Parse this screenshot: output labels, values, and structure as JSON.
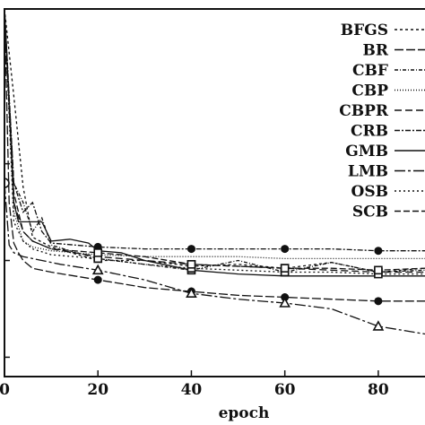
{
  "chart_data": {
    "type": "line",
    "xlabel": "epoch",
    "ylabel": "",
    "xlim": [
      0,
      90
    ],
    "ylim": [
      0.3,
      2.2
    ],
    "xticks": [
      0,
      20,
      40,
      60,
      80
    ],
    "xtick_labels": [
      "0",
      "20",
      "40",
      "60",
      "80"
    ],
    "legend_position": "top-right",
    "grid": false,
    "series": [
      {
        "name": "BFGS",
        "dash": "3,3",
        "marker": "none",
        "x": [
          0,
          2,
          4,
          6,
          10,
          20,
          30,
          40,
          50,
          60,
          70,
          80,
          90
        ],
        "y": [
          2.2,
          1.75,
          1.28,
          1.02,
          0.97,
          0.9,
          0.9,
          0.87,
          0.88,
          0.86,
          0.89,
          0.84,
          0.86
        ]
      },
      {
        "name": "BR",
        "dash": "10,3",
        "marker": "circle",
        "x": [
          0,
          1,
          2,
          3,
          4,
          6,
          10,
          20,
          30,
          40,
          50,
          60,
          70,
          80,
          90
        ],
        "y": [
          2.2,
          1.2,
          0.99,
          0.94,
          0.9,
          0.86,
          0.84,
          0.8,
          0.76,
          0.74,
          0.72,
          0.71,
          0.7,
          0.69,
          0.69
        ]
      },
      {
        "name": "CBF",
        "dash": "4,2,1,2",
        "marker": "square",
        "x": [
          0,
          2,
          4,
          6,
          8,
          10,
          14,
          20,
          30,
          40,
          50,
          60,
          70,
          80,
          90
        ],
        "y": [
          2.2,
          1.3,
          1.2,
          1.05,
          1.12,
          0.98,
          0.95,
          0.91,
          0.88,
          0.85,
          0.9,
          0.84,
          0.89,
          0.84,
          0.85
        ]
      },
      {
        "name": "CBP",
        "dash": "1,2",
        "marker": "none",
        "x": [
          0,
          2,
          4,
          6,
          10,
          20,
          30,
          40,
          50,
          60,
          70,
          80,
          90
        ],
        "y": [
          2.2,
          1.15,
          1.0,
          0.97,
          0.95,
          0.93,
          0.92,
          0.92,
          0.92,
          0.91,
          0.91,
          0.91,
          0.91
        ]
      },
      {
        "name": "CBPR",
        "dash": "8,4",
        "marker": "square",
        "x": [
          0,
          2,
          4,
          6,
          10,
          20,
          30,
          40,
          50,
          60,
          70,
          80,
          90
        ],
        "y": [
          2.2,
          1.2,
          1.05,
          1.0,
          0.96,
          0.92,
          0.9,
          0.88,
          0.87,
          0.86,
          0.85,
          0.84,
          0.84
        ]
      },
      {
        "name": "CRB",
        "dash": "6,2,2,2",
        "marker": "circle",
        "x": [
          0,
          2,
          4,
          6,
          8,
          10,
          20,
          30,
          40,
          50,
          60,
          70,
          80,
          90
        ],
        "y": [
          2.2,
          1.3,
          1.15,
          1.2,
          1.05,
          0.99,
          0.97,
          0.96,
          0.96,
          0.96,
          0.96,
          0.96,
          0.95,
          0.95
        ]
      },
      {
        "name": "GMB",
        "dash": "none",
        "marker": "none",
        "x": [
          0,
          1,
          2,
          3,
          5,
          8,
          10,
          14,
          18,
          20,
          25,
          30,
          40,
          50,
          60,
          70,
          80,
          90
        ],
        "y": [
          2.2,
          1.7,
          1.2,
          1.1,
          1.1,
          1.1,
          1.0,
          1.01,
          0.99,
          0.95,
          0.94,
          0.9,
          0.85,
          0.83,
          0.82,
          0.82,
          0.82,
          0.82
        ]
      },
      {
        "name": "LMB",
        "dash": "12,3,3,3",
        "marker": "triangle",
        "x": [
          0,
          1,
          2,
          4,
          8,
          12,
          20,
          30,
          40,
          50,
          60,
          70,
          80,
          90
        ],
        "y": [
          1.3,
          0.98,
          0.94,
          0.92,
          0.9,
          0.88,
          0.85,
          0.8,
          0.73,
          0.7,
          0.68,
          0.65,
          0.56,
          0.52
        ]
      },
      {
        "name": "OSB",
        "dash": "2,3",
        "marker": "square",
        "x": [
          0,
          2,
          4,
          6,
          10,
          20,
          30,
          40,
          50,
          60,
          70,
          80,
          90
        ],
        "y": [
          2.2,
          1.1,
          1.0,
          0.96,
          0.93,
          0.91,
          0.88,
          0.86,
          0.85,
          0.84,
          0.84,
          0.83,
          0.83
        ]
      },
      {
        "name": "SCB",
        "dash": "7,3",
        "marker": "square",
        "x": [
          0,
          2,
          4,
          6,
          10,
          20,
          30,
          40,
          50,
          60,
          70,
          80,
          90
        ],
        "y": [
          2.2,
          1.25,
          1.05,
          1.0,
          0.96,
          0.94,
          0.92,
          0.88,
          0.87,
          0.86,
          0.86,
          0.85,
          0.86
        ]
      }
    ]
  }
}
